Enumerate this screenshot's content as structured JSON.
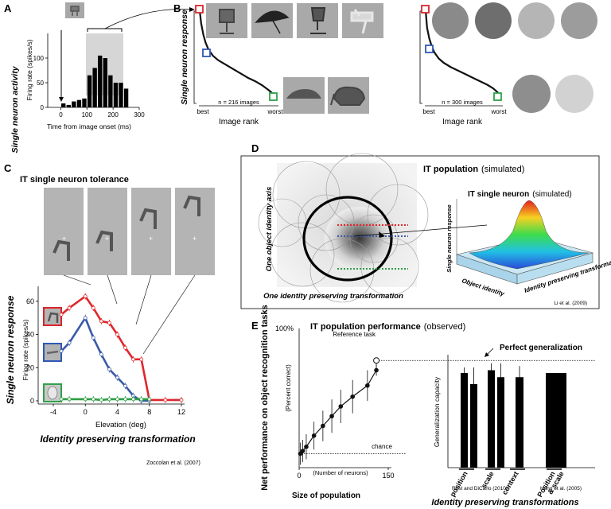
{
  "panels": {
    "A": "A",
    "B": "B",
    "C": "C",
    "D": "D",
    "E": "E"
  },
  "panelA": {
    "ylabel_outer": "Single neuron activity",
    "ylabel": "Firing rate (spikes/s)",
    "xlabel": "Time from image onset (ms)",
    "yticks": [
      "0",
      "50",
      "100"
    ],
    "xticks": [
      "0",
      "100",
      "200",
      "300"
    ]
  },
  "panelB": {
    "ylabel": "Single neuron response",
    "left": {
      "count_label": "n = 216 images",
      "xlabel": "Image rank",
      "best": "best",
      "worst": "worst"
    },
    "right": {
      "count_label": "n = 300 images",
      "xlabel": "Image rank",
      "best": "best",
      "worst": "worst"
    }
  },
  "panelC": {
    "title": "IT single neuron tolerance",
    "ylabel_outer": "Single neuron response",
    "ylabel": "Firing rate (spikes/s)",
    "xlabel": "Elevation (deg)",
    "xlabel_outer": "Identity preserving transformation",
    "yticks": [
      "0",
      "20",
      "40",
      "60"
    ],
    "xticks": [
      "-4",
      "0",
      "4",
      "8",
      "12"
    ],
    "citation": "Zoccolan et al. (2007)"
  },
  "panelD": {
    "title_bold": "IT population",
    "title_rest": "(simulated)",
    "yaxis": "One object identity axis",
    "xaxis": "One identity preserving transformation",
    "inset_title_bold": "IT single neuron",
    "inset_title_rest": "(simulated)",
    "inset_z": "Single neuron response",
    "inset_x": "Object identity",
    "inset_y": "Identity preserving transformation",
    "citation": "Li et al. (2009)"
  },
  "panelE": {
    "title_bold": "IT population performance",
    "title_rest": "(observed)",
    "ylabel": "Net performance on object recognition tasks",
    "ylabel_sub": "(Percent correct)",
    "ytop": "100%",
    "xlabel_sub": "(Number of neurons)",
    "xlabel": "Size of population",
    "xticks": [
      "0",
      "150"
    ],
    "reference": "Reference task",
    "chance": "chance",
    "perfect": "Perfect generalization",
    "gen_label": "Generalization capacity",
    "citation_left": "Rust and DiCarlo (2010)",
    "citation_right": "Hung et al. (2005)",
    "bottom_title": "Identity preserving transformations"
  },
  "chart_data": [
    {
      "type": "bar",
      "panel": "A",
      "xlabel": "Time from image onset (ms)",
      "ylabel": "Firing rate (spikes/s)",
      "xlim": [
        -50,
        300
      ],
      "ylim": [
        0,
        150
      ],
      "bin_start": [
        0,
        20,
        40,
        60,
        80,
        100,
        120,
        140,
        160,
        180,
        200,
        220,
        240
      ],
      "bin_width": 20,
      "values": [
        8,
        5,
        12,
        15,
        18,
        65,
        80,
        105,
        100,
        65,
        50,
        50,
        38
      ]
    },
    {
      "type": "line",
      "panel": "B-left",
      "xlabel": "Image rank",
      "ylabel": "Single neuron response",
      "n": 216,
      "x": [
        0,
        0.02,
        0.05,
        0.08,
        0.12,
        0.18,
        0.25,
        0.35,
        0.45,
        0.55,
        0.65,
        0.75,
        0.85,
        0.93,
        1.0
      ],
      "y": [
        1.0,
        0.85,
        0.72,
        0.63,
        0.55,
        0.48,
        0.43,
        0.38,
        0.33,
        0.28,
        0.23,
        0.19,
        0.14,
        0.09,
        0.04
      ]
    },
    {
      "type": "line",
      "panel": "B-right",
      "xlabel": "Image rank",
      "ylabel": "Single neuron response",
      "n": 300,
      "x": [
        0,
        0.02,
        0.05,
        0.08,
        0.12,
        0.18,
        0.25,
        0.35,
        0.45,
        0.55,
        0.65,
        0.75,
        0.85,
        0.93,
        1.0
      ],
      "y": [
        1.0,
        0.8,
        0.68,
        0.6,
        0.52,
        0.45,
        0.4,
        0.35,
        0.31,
        0.27,
        0.23,
        0.19,
        0.15,
        0.11,
        0.06
      ]
    },
    {
      "type": "line",
      "panel": "C",
      "xlabel": "Elevation (deg)",
      "ylabel": "Firing rate (spikes/s)",
      "xlim": [
        -4,
        12
      ],
      "ylim": [
        0,
        70
      ],
      "series": [
        {
          "color": "#e0262b",
          "x": [
            -3,
            -2,
            0,
            1,
            2,
            3,
            4,
            5,
            6,
            7,
            8,
            10,
            12
          ],
          "y": [
            52,
            56,
            63,
            56,
            48,
            47,
            40,
            32,
            25,
            25,
            0.5,
            0.5,
            0.5
          ]
        },
        {
          "color": "#3a59a8",
          "x": [
            -3,
            -2,
            0,
            1,
            2,
            3,
            4,
            5,
            6,
            7,
            8
          ],
          "y": [
            30,
            35,
            50,
            38,
            28,
            19,
            14,
            9,
            3,
            0,
            0
          ]
        },
        {
          "color": "#2e9e44",
          "x": [
            -3,
            -2,
            0,
            1,
            2,
            3,
            4,
            5,
            6,
            7,
            8
          ],
          "y": [
            1,
            1,
            1,
            1,
            0.5,
            1,
            1,
            1,
            1,
            1,
            1
          ]
        }
      ]
    },
    {
      "type": "scatter",
      "panel": "E-left",
      "xlabel": "Size of population",
      "ylabel": "Net performance on object recognition tasks",
      "xlim": [
        0,
        150
      ],
      "ylim": [
        0,
        100
      ],
      "x": [
        2,
        6,
        12,
        25,
        40,
        55,
        70,
        90,
        115,
        130
      ],
      "y": [
        10,
        12,
        15,
        23,
        30,
        37,
        44,
        51,
        59,
        70
      ],
      "err": [
        8,
        8,
        9,
        10,
        11,
        12,
        12,
        12,
        11,
        4
      ],
      "reference_point": {
        "x": 130,
        "y": 77
      },
      "chance_y": 10
    },
    {
      "type": "bar",
      "panel": "E-right",
      "ylabel": "Generalization capacity",
      "categories": [
        "position",
        "scale",
        "context",
        "Position & scale"
      ],
      "values": [
        [
          68,
          60
        ],
        [
          70,
          65
        ],
        [
          65
        ],
        [
          68
        ]
      ],
      "err": [
        [
          4,
          12
        ],
        [
          5,
          10
        ],
        [
          8
        ],
        [
          0
        ]
      ],
      "perfect_level": 77
    }
  ]
}
